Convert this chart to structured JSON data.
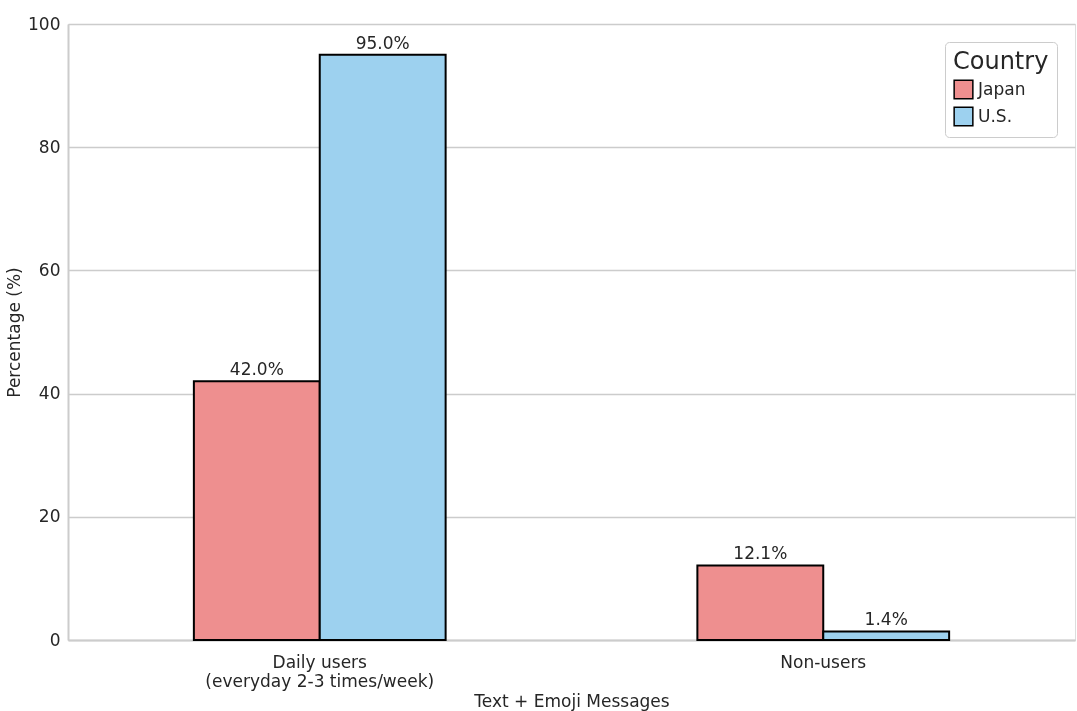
{
  "chart_data": {
    "type": "bar",
    "xlabel": "Text + Emoji Messages",
    "ylabel": "Percentage (%)",
    "legend_title": "Country",
    "categories": [
      "Daily users\n(everyday 2-3 times/week)",
      "Non-users"
    ],
    "series": [
      {
        "name": "Japan",
        "color": "#ee8f8f",
        "values": [
          42.0,
          12.1
        ],
        "value_labels": [
          "42.0%",
          "12.1%"
        ]
      },
      {
        "name": "U.S.",
        "color": "#9dd1ef",
        "values": [
          95.0,
          1.4
        ],
        "value_labels": [
          "95.0%",
          "1.4%"
        ]
      }
    ],
    "ylim": [
      0,
      100
    ],
    "yticks": [
      0,
      20,
      40,
      60,
      80,
      100
    ],
    "grid": "y",
    "legend": "top right"
  }
}
